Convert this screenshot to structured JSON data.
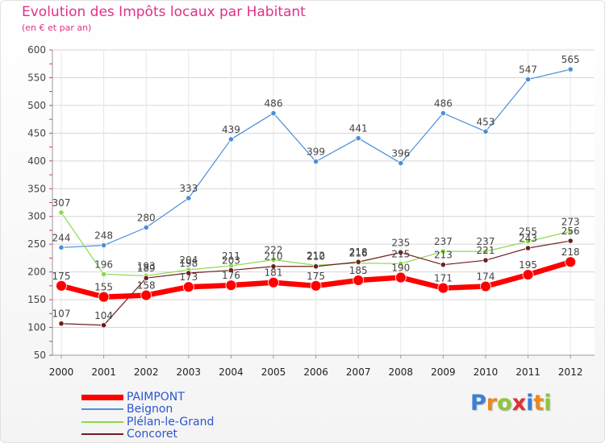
{
  "header": {
    "title": "Evolution des Impôts locaux par Habitant",
    "subtitle": "(en € et par an)"
  },
  "brand": {
    "logo_letters": [
      "P",
      "r",
      "o",
      "x",
      "i",
      "t",
      "i"
    ],
    "logo_colors": [
      "#3a7fd8",
      "#e88a20",
      "#8cc63f",
      "#e03030",
      "#3a7fd8",
      "#e88a20",
      "#8cc63f"
    ]
  },
  "chart_data": {
    "type": "line",
    "title": "Evolution des Impôts locaux par Habitant",
    "subtitle": "(en € et par an)",
    "xlabel": "",
    "ylabel": "",
    "categories": [
      "2000",
      "2001",
      "2002",
      "2003",
      "2004",
      "2005",
      "2006",
      "2007",
      "2008",
      "2009",
      "2010",
      "2011",
      "2012"
    ],
    "ylim": [
      50,
      600
    ],
    "yticks": [
      50,
      100,
      150,
      200,
      250,
      300,
      350,
      400,
      450,
      500,
      550,
      600
    ],
    "grid": true,
    "legend_position": "bottom-left",
    "series": [
      {
        "name": "Beignon",
        "color": "#4a90d9",
        "values": [
          244,
          248,
          280,
          333,
          439,
          486,
          399,
          441,
          396,
          486,
          453,
          547,
          565
        ]
      },
      {
        "name": "Plélan-le-Grand",
        "color": "#8ed84e",
        "values": [
          307,
          196,
          193,
          204,
          211,
          222,
          212,
          216,
          215,
          237,
          237,
          255,
          273
        ]
      },
      {
        "name": "Concoret",
        "color": "#6e1f1f",
        "values": [
          107,
          104,
          189,
          198,
          203,
          210,
          210,
          218,
          235,
          213,
          221,
          243,
          256
        ]
      },
      {
        "name": "PAIMPONT",
        "color": "#ff0000",
        "values": [
          175,
          155,
          158,
          173,
          176,
          181,
          175,
          185,
          190,
          171,
          174,
          195,
          218
        ]
      }
    ],
    "data_labels": [
      {
        "series": "Beignon",
        "labels": [
          "244",
          "248",
          "280",
          "333",
          "439",
          "486",
          "399",
          "441",
          "396",
          "486",
          "453",
          "547",
          "565"
        ]
      },
      {
        "series": "Plélan-le-Grand",
        "labels": [
          "307",
          "196",
          "193",
          "204",
          "211",
          "222",
          "212",
          "216",
          "215",
          "237",
          "237",
          "255",
          "273"
        ]
      },
      {
        "series": "Concoret",
        "labels": [
          "107",
          "104",
          "189",
          "198",
          "203",
          "210",
          "210",
          "218",
          "235",
          "213",
          "221",
          "243",
          "256"
        ]
      },
      {
        "series": "PAIMPONT",
        "labels": [
          "175",
          "155",
          "158",
          "173",
          "176",
          "181",
          "175",
          "185",
          "190",
          "171",
          "174",
          "195",
          "218"
        ]
      }
    ],
    "legend_order": [
      "PAIMPONT",
      "Beignon",
      "Plélan-le-Grand",
      "Concoret"
    ]
  }
}
